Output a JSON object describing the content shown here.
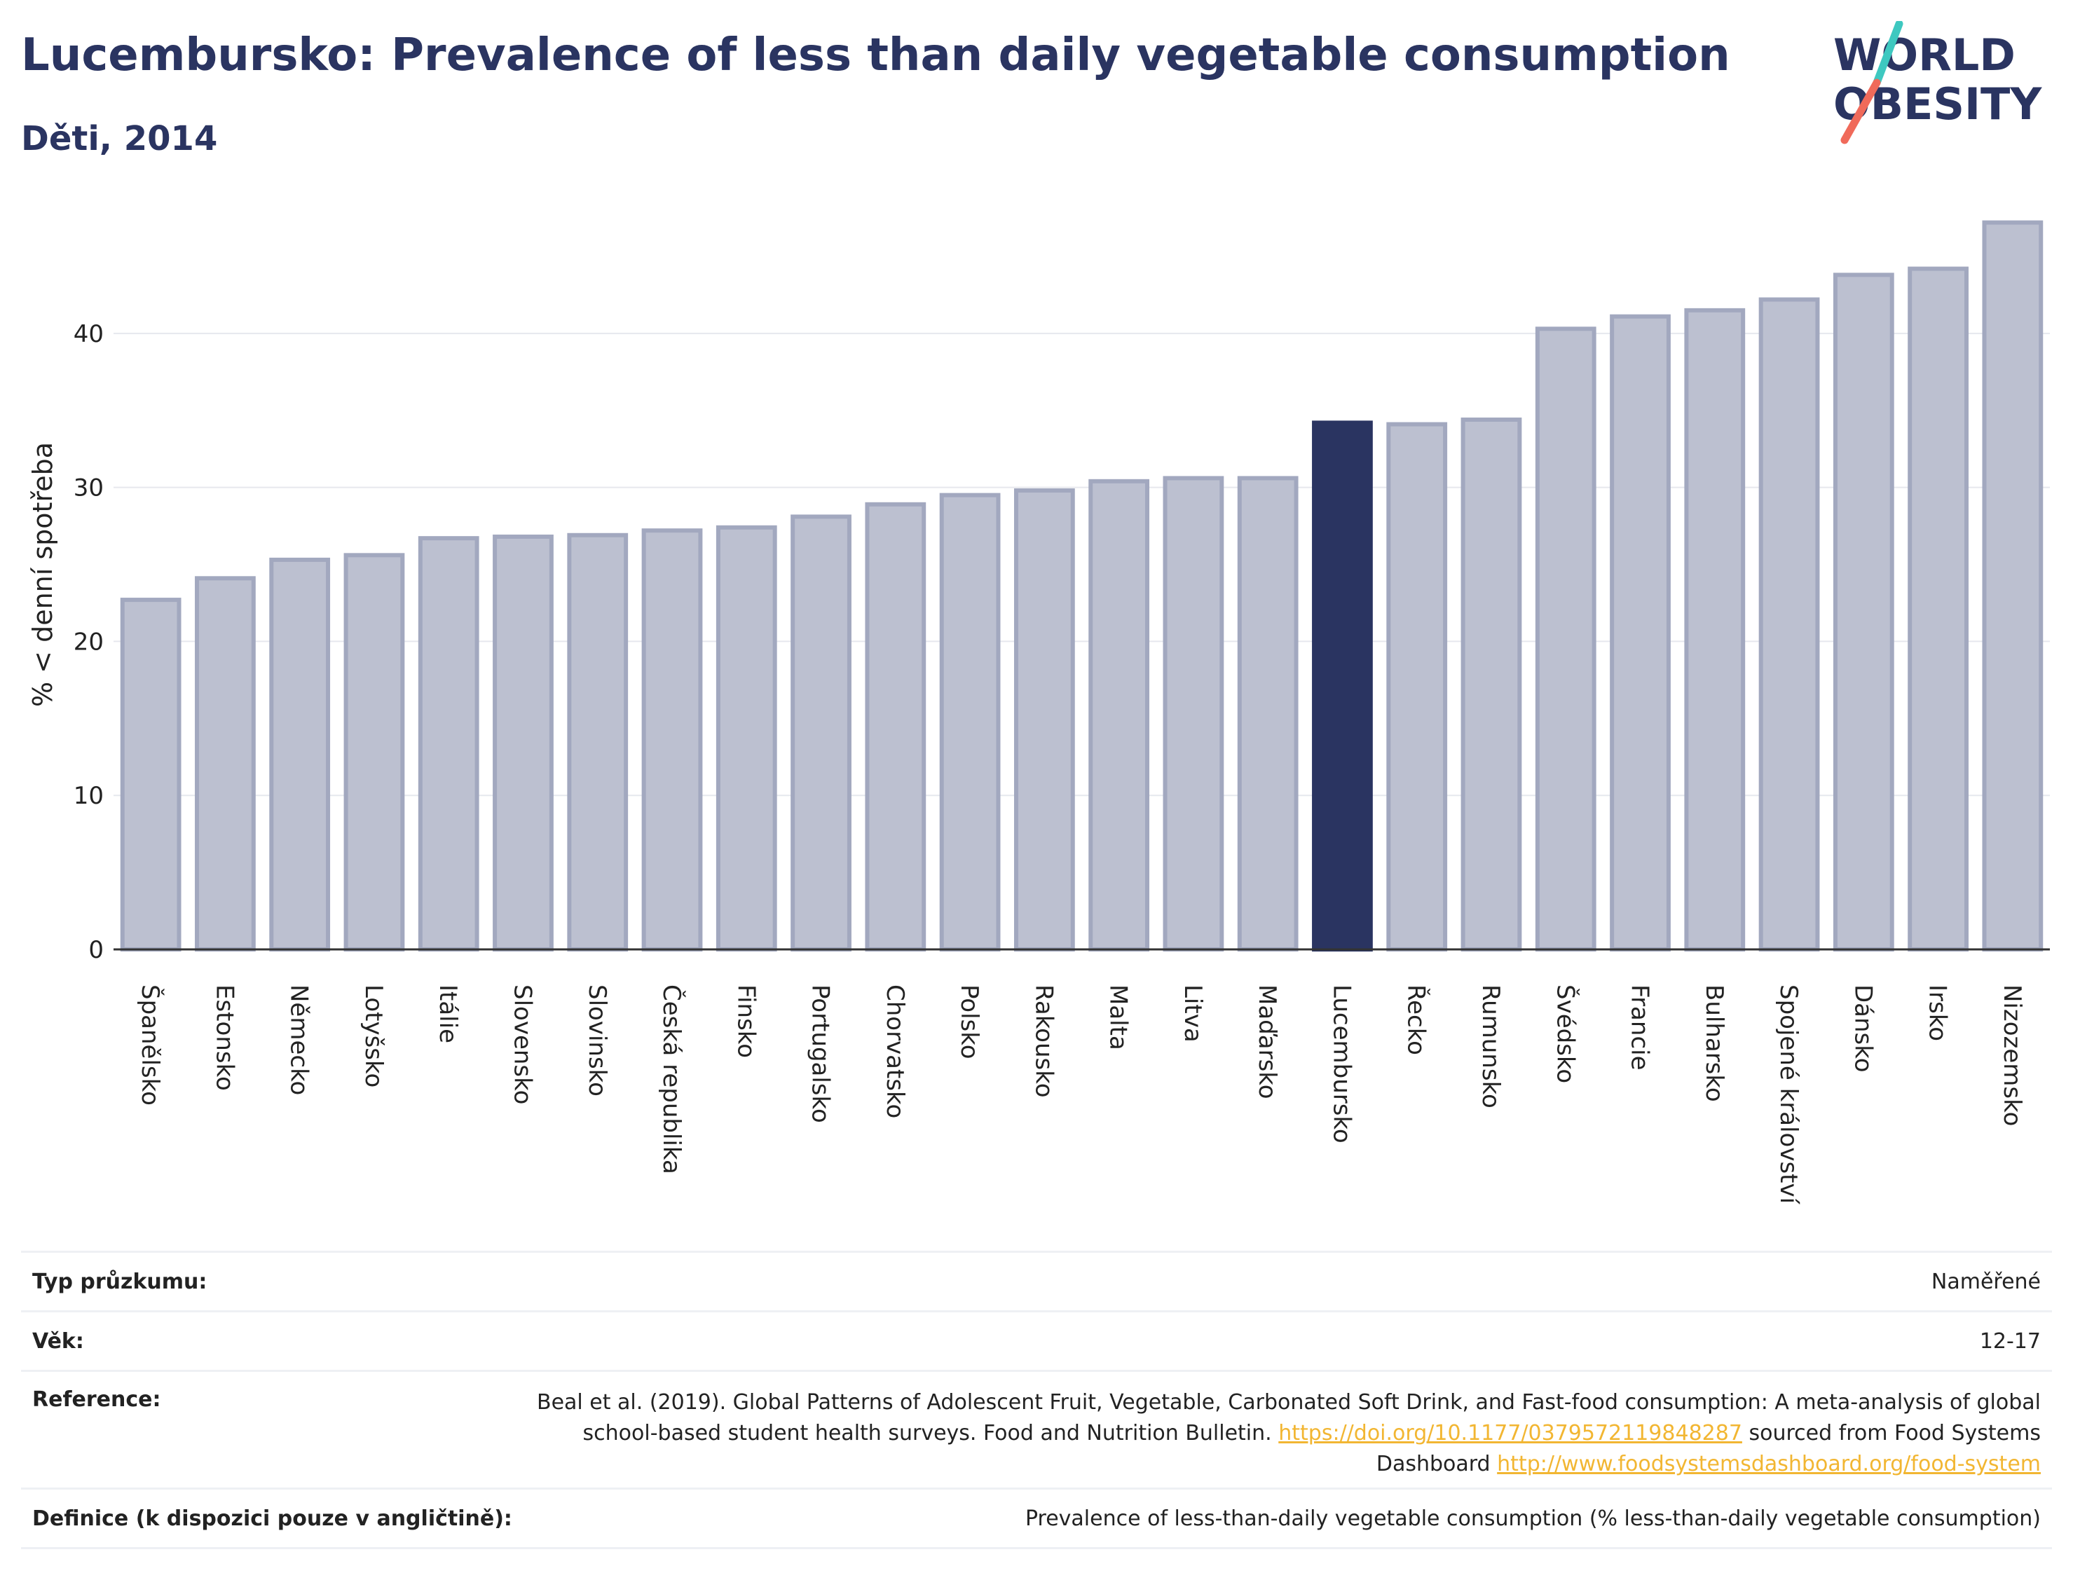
{
  "title": "Lucembursko: Prevalence of less than daily vegetable consumption",
  "subtitle": "Děti, 2014",
  "logo": {
    "line1": "WORLD",
    "line2": "OBESITY"
  },
  "colors": {
    "bar": "#bcc0d0",
    "bar_stroke": "#a2a8bf",
    "highlight": "#2a3461",
    "logo_teal": "#3ec8c0",
    "logo_coral": "#f06a5a"
  },
  "chart_data": {
    "type": "bar",
    "ylabel": "% < denní spotřeba",
    "ylim": [
      0,
      48
    ],
    "yticks": [
      0,
      10,
      20,
      30,
      40
    ],
    "grid": true,
    "highlight": "Lucembursko",
    "categories": [
      "Španělsko",
      "Estonsko",
      "Německo",
      "Lotyšsko",
      "Itálie",
      "Slovensko",
      "Slovinsko",
      "Česká republika",
      "Finsko",
      "Portugalsko",
      "Chorvatsko",
      "Polsko",
      "Rakousko",
      "Malta",
      "Litva",
      "Maďarsko",
      "Lucembursko",
      "Řecko",
      "Rumunsko",
      "Švédsko",
      "Francie",
      "Bulharsko",
      "Spojené království",
      "Dánsko",
      "Irsko",
      "Nizozemsko"
    ],
    "values": [
      22.7,
      24.1,
      25.3,
      25.6,
      26.7,
      26.8,
      26.9,
      27.2,
      27.4,
      28.1,
      28.9,
      29.5,
      29.8,
      30.4,
      30.6,
      30.6,
      34.2,
      34.1,
      34.4,
      40.3,
      41.1,
      41.5,
      42.2,
      43.8,
      44.2,
      47.2
    ]
  },
  "info": {
    "survey_type_label": "Typ průzkumu:",
    "survey_type_value": "Naměřené",
    "age_label": "Věk:",
    "age_value": "12-17",
    "reference_label": "Reference:",
    "reference_text1": "Beal et al. (2019). Global Patterns of Adolescent Fruit, Vegetable, Carbonated Soft Drink, and Fast-food consumption: A meta-analysis of global school-based student health surveys. Food and Nutrition Bulletin.",
    "reference_link1": "https://doi.org/10.1177/0379572119848287",
    "reference_text2": "sourced from Food Systems Dashboard",
    "reference_link2": "http://www.foodsystemsdashboard.org/food-system",
    "definition_label": "Definice (k dispozici pouze v angličtině):",
    "definition_value": "Prevalence of less-than-daily vegetable consumption (% less-than-daily vegetable consumption)"
  }
}
